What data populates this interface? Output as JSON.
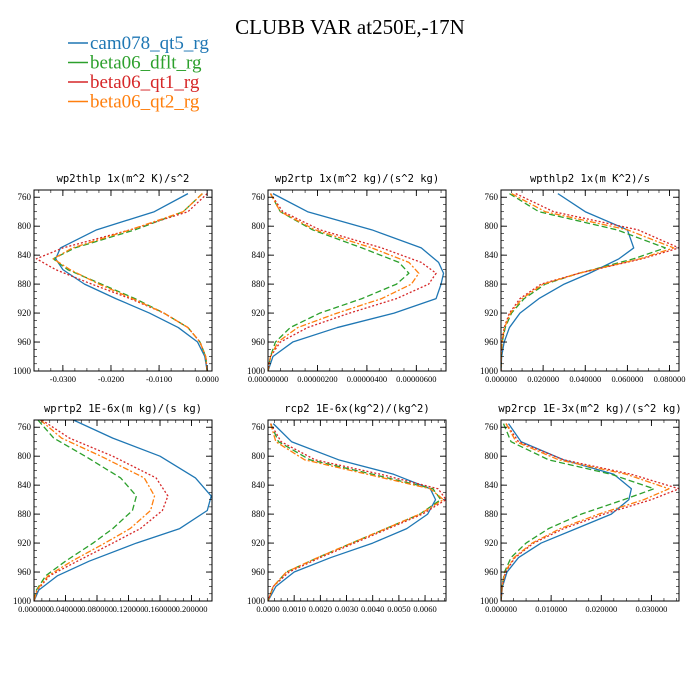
{
  "figure": {
    "title": "CLUBB VAR at250E,-17N"
  },
  "legend": [
    {
      "name": "cam078_qt5_rg",
      "color": "#1f77b4",
      "dash": "solid"
    },
    {
      "name": "beta06_dflt_rg",
      "color": "#2ca02c",
      "dash": "dash"
    },
    {
      "name": "beta06_qt1_rg",
      "color": "#d62728",
      "dash": "dot"
    },
    {
      "name": "beta06_qt2_rg",
      "color": "#ff7f0e",
      "dash": "dashdot"
    }
  ],
  "chart_data": [
    {
      "type": "line",
      "title": "wp2thlp  1x(m^2 K)/s^2",
      "xlim": [
        -0.036,
        0.001
      ],
      "ylim": [
        1000,
        750
      ],
      "x_ticks": [
        -0.03,
        -0.02,
        -0.01,
        0.0
      ],
      "x_tick_labels": [
        "-0.0300",
        "-0.0200",
        "-0.0100",
        "0.0000"
      ],
      "y_ticks": [
        760,
        800,
        840,
        880,
        920,
        960,
        1000
      ],
      "y": [
        755,
        780,
        805,
        830,
        845,
        860,
        880,
        900,
        920,
        940,
        960,
        980,
        1000
      ],
      "series": [
        {
          "name": "cam078_qt5_rg",
          "x": [
            -0.004,
            -0.011,
            -0.023,
            -0.0305,
            -0.0315,
            -0.03,
            -0.0255,
            -0.019,
            -0.012,
            -0.006,
            -0.002,
            -0.0005,
            0.0
          ]
        },
        {
          "name": "beta06_dflt_rg",
          "x": [
            -0.001,
            -0.005,
            -0.015,
            -0.0275,
            -0.032,
            -0.029,
            -0.022,
            -0.015,
            -0.009,
            -0.004,
            -0.0015,
            -0.0003,
            0.0
          ]
        },
        {
          "name": "beta06_qt1_rg",
          "x": [
            0.0,
            -0.004,
            -0.016,
            -0.03,
            -0.0355,
            -0.0315,
            -0.024,
            -0.016,
            -0.009,
            -0.004,
            -0.0015,
            -0.0003,
            0.0
          ]
        },
        {
          "name": "beta06_qt2_rg",
          "x": [
            -0.001,
            -0.005,
            -0.016,
            -0.028,
            -0.032,
            -0.0285,
            -0.0225,
            -0.0155,
            -0.009,
            -0.004,
            -0.0015,
            -0.0003,
            0.0
          ]
        }
      ]
    },
    {
      "type": "line",
      "title": "wp2rtp  1x(m^2 kg)/(s^2 kg)",
      "xlim": [
        0,
        7.2e-06
      ],
      "ylim": [
        1000,
        750
      ],
      "x_ticks": [
        0,
        2e-06,
        4e-06,
        6e-06
      ],
      "x_tick_labels": [
        "0.00000000",
        "0.00000200",
        "0.00000400",
        "0.00000600"
      ],
      "y_ticks": [
        760,
        800,
        840,
        880,
        920,
        960,
        1000
      ],
      "y": [
        755,
        780,
        805,
        830,
        850,
        865,
        880,
        900,
        920,
        940,
        960,
        980,
        1000
      ],
      "series": [
        {
          "name": "cam078_qt5_rg",
          "x": [
            2e-07,
            1.6e-06,
            4.2e-06,
            6.2e-06,
            6.9e-06,
            7.1e-06,
            7e-06,
            6.8e-06,
            5.1e-06,
            2.8e-06,
            1e-06,
            2e-07,
            0.0
          ],
          "_": ""
        },
        {
          "name": "beta06_dflt_rg",
          "x": [
            1e-07,
            5e-07,
            1.8e-06,
            3.8e-06,
            5.3e-06,
            5.7e-06,
            5.2e-06,
            3.8e-06,
            2.1e-06,
            9e-07,
            3e-07,
            1e-07,
            0.0
          ]
        },
        {
          "name": "beta06_qt1_rg",
          "x": [
            1e-07,
            6e-07,
            2.1e-06,
            4.6e-06,
            6.2e-06,
            6.8e-06,
            6.5e-06,
            5.2e-06,
            3.3e-06,
            1.6e-06,
            5e-07,
            1e-07,
            0.0
          ]
        },
        {
          "name": "beta06_qt2_rg",
          "x": [
            1e-07,
            5e-07,
            1.9e-06,
            4.2e-06,
            5.7e-06,
            6.1e-06,
            5.8e-06,
            4.6e-06,
            2.8e-06,
            1.2e-06,
            4e-07,
            1e-07,
            0.0
          ]
        }
      ]
    },
    {
      "type": "line",
      "title": "wpthlp2  1x(m K^2)/s",
      "xlim": [
        0,
        0.0845
      ],
      "ylim": [
        1000,
        750
      ],
      "x_ticks": [
        0,
        0.02,
        0.04,
        0.06,
        0.08
      ],
      "x_tick_labels": [
        "0.000000",
        "0.020000",
        "0.040000",
        "0.060000",
        "0.080000"
      ],
      "y_ticks": [
        760,
        800,
        840,
        880,
        920,
        960,
        1000
      ],
      "y": [
        755,
        780,
        805,
        830,
        845,
        865,
        880,
        900,
        920,
        940,
        960,
        980,
        1000
      ],
      "series": [
        {
          "name": "cam078_qt5_rg",
          "x": [
            0.027,
            0.04,
            0.06,
            0.063,
            0.056,
            0.042,
            0.03,
            0.018,
            0.009,
            0.004,
            0.0015,
            0.0003,
            0.0
          ]
        },
        {
          "name": "beta06_dflt_rg",
          "x": [
            0.004,
            0.018,
            0.055,
            0.078,
            0.063,
            0.037,
            0.021,
            0.011,
            0.005,
            0.002,
            0.0006,
            0.0001,
            0.0
          ]
        },
        {
          "name": "beta06_qt1_rg",
          "x": [
            0.007,
            0.025,
            0.065,
            0.0845,
            0.067,
            0.037,
            0.019,
            0.009,
            0.004,
            0.0015,
            0.0004,
            0.0001,
            0.0
          ]
        },
        {
          "name": "beta06_qt2_rg",
          "x": [
            0.005,
            0.021,
            0.06,
            0.082,
            0.066,
            0.037,
            0.02,
            0.01,
            0.0045,
            0.0017,
            0.0005,
            0.0001,
            0.0
          ]
        }
      ]
    },
    {
      "type": "line",
      "title": "wprtp2  1E-6x(m kg)/(s kg)",
      "xlim": [
        0,
        0.226
      ],
      "ylim": [
        1000,
        750
      ],
      "x_ticks": [
        0,
        0.04,
        0.08,
        0.12,
        0.16,
        0.2
      ],
      "x_tick_labels": [
        "0.000000",
        "0.040000",
        "0.080000",
        "0.120000",
        "0.160000",
        "0.200000"
      ],
      "y_ticks": [
        760,
        800,
        840,
        880,
        920,
        960,
        1000
      ],
      "y": [
        750,
        775,
        800,
        830,
        855,
        875,
        900,
        920,
        945,
        965,
        985,
        1000
      ],
      "series": [
        {
          "name": "cam078_qt5_rg",
          "x": [
            0.05,
            0.1,
            0.16,
            0.205,
            0.225,
            0.22,
            0.185,
            0.13,
            0.07,
            0.03,
            0.006,
            0.0
          ]
        },
        {
          "name": "beta06_dflt_rg",
          "x": [
            0.005,
            0.025,
            0.065,
            0.11,
            0.13,
            0.125,
            0.1,
            0.075,
            0.04,
            0.015,
            0.003,
            0.0
          ]
        },
        {
          "name": "beta06_qt1_rg",
          "x": [
            0.01,
            0.045,
            0.1,
            0.155,
            0.17,
            0.163,
            0.135,
            0.1,
            0.055,
            0.02,
            0.004,
            0.0
          ]
        },
        {
          "name": "beta06_qt2_rg",
          "x": [
            0.008,
            0.035,
            0.085,
            0.14,
            0.153,
            0.148,
            0.122,
            0.09,
            0.048,
            0.018,
            0.0035,
            0.0
          ]
        }
      ]
    },
    {
      "type": "line",
      "title": "rcp2  1E-6x(kg^2)/(kg^2)",
      "xlim": [
        0,
        0.0068
      ],
      "ylim": [
        1000,
        750
      ],
      "x_ticks": [
        0,
        0.001,
        0.002,
        0.003,
        0.004,
        0.005,
        0.006
      ],
      "x_tick_labels": [
        "0.0000",
        "0.0010",
        "0.0020",
        "0.0030",
        "0.0040",
        "0.0050",
        "0.0060"
      ],
      "y_ticks": [
        760,
        800,
        840,
        880,
        920,
        960,
        1000
      ],
      "y": [
        755,
        780,
        805,
        825,
        845,
        860,
        880,
        900,
        920,
        940,
        960,
        980,
        1000
      ],
      "series": [
        {
          "name": "cam078_qt5_rg",
          "x": [
            0.0002,
            0.0009,
            0.0027,
            0.0048,
            0.0062,
            0.0064,
            0.0061,
            0.0053,
            0.004,
            0.0024,
            0.001,
            0.0003,
            0.0
          ]
        },
        {
          "name": "beta06_dflt_rg",
          "x": [
            0.0001,
            0.0004,
            0.0016,
            0.004,
            0.0063,
            0.0066,
            0.0058,
            0.0045,
            0.0032,
            0.0019,
            0.0007,
            0.0002,
            0.0
          ]
        },
        {
          "name": "beta06_qt1_rg",
          "x": [
            0.0001,
            0.0005,
            0.0018,
            0.0043,
            0.0065,
            0.0068,
            0.0059,
            0.0046,
            0.0033,
            0.002,
            0.0008,
            0.0002,
            0.0
          ]
        },
        {
          "name": "beta06_qt2_rg",
          "x": [
            0.0001,
            0.0003,
            0.0014,
            0.0038,
            0.0062,
            0.0067,
            0.0058,
            0.0045,
            0.0032,
            0.0019,
            0.0007,
            0.0002,
            0.0
          ]
        }
      ]
    },
    {
      "type": "line",
      "title": "wp2rcp  1E-3x(m^2 kg)/(s^2 kg)",
      "xlim": [
        0,
        0.0355
      ],
      "ylim": [
        1000,
        750
      ],
      "x_ticks": [
        0,
        0.01,
        0.02,
        0.03
      ],
      "x_tick_labels": [
        "0.000000",
        "0.010000",
        "0.020000",
        "0.030000"
      ],
      "y_ticks": [
        760,
        800,
        840,
        880,
        920,
        960,
        1000
      ],
      "y": [
        755,
        780,
        805,
        825,
        845,
        860,
        880,
        900,
        920,
        940,
        960,
        980,
        1000
      ],
      "series": [
        {
          "name": "cam078_qt5_rg",
          "x": [
            0.0015,
            0.004,
            0.0125,
            0.0225,
            0.026,
            0.0255,
            0.022,
            0.015,
            0.008,
            0.0035,
            0.0012,
            0.0003,
            0.0
          ]
        },
        {
          "name": "beta06_dflt_rg",
          "x": [
            0.0005,
            0.002,
            0.0095,
            0.022,
            0.0305,
            0.0245,
            0.016,
            0.0095,
            0.005,
            0.002,
            0.0007,
            0.0002,
            0.0
          ]
        },
        {
          "name": "beta06_qt1_rg",
          "x": [
            0.001,
            0.0035,
            0.0125,
            0.026,
            0.0355,
            0.03,
            0.0205,
            0.0125,
            0.0065,
            0.0028,
            0.0009,
            0.0002,
            0.0
          ]
        },
        {
          "name": "beta06_qt2_rg",
          "x": [
            0.001,
            0.003,
            0.0115,
            0.025,
            0.0335,
            0.0285,
            0.0195,
            0.0118,
            0.0062,
            0.0026,
            0.0008,
            0.0002,
            0.0
          ]
        }
      ]
    }
  ]
}
